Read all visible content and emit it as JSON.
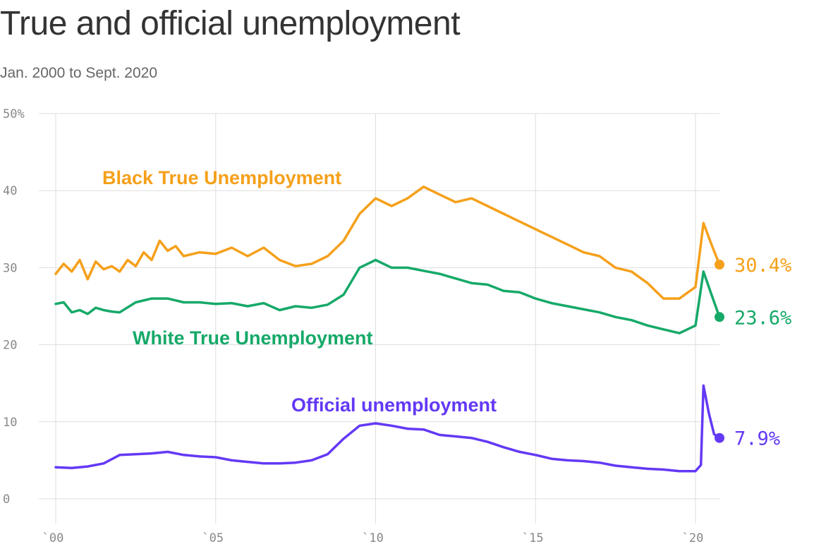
{
  "title": "True and official unemployment",
  "subtitle": "Jan. 2000 to Sept. 2020",
  "chart_data": {
    "type": "line",
    "title": "True and official unemployment",
    "subtitle": "Jan. 2000 to Sept. 2020",
    "xlabel": "",
    "ylabel": "",
    "xlim": [
      2000,
      2020.75
    ],
    "ylim": [
      0,
      50
    ],
    "grid": true,
    "legend": "inline labels",
    "x_ticks": [
      {
        "value": 2000,
        "label": "`00"
      },
      {
        "value": 2005,
        "label": "`05"
      },
      {
        "value": 2010,
        "label": "`10"
      },
      {
        "value": 2015,
        "label": "`15"
      },
      {
        "value": 2020,
        "label": "`20"
      }
    ],
    "y_ticks": [
      {
        "value": 0,
        "label": "0"
      },
      {
        "value": 10,
        "label": "10"
      },
      {
        "value": 20,
        "label": "20"
      },
      {
        "value": 30,
        "label": "30"
      },
      {
        "value": 40,
        "label": "40"
      },
      {
        "value": 50,
        "label": "50%"
      }
    ],
    "series": [
      {
        "name": "Black True Unemployment",
        "color": "#F5A01A",
        "end_label": "30.4%",
        "points": [
          [
            2000,
            29.2
          ],
          [
            2000.25,
            30.5
          ],
          [
            2000.5,
            29.5
          ],
          [
            2000.75,
            31
          ],
          [
            2001,
            28.5
          ],
          [
            2001.25,
            30.8
          ],
          [
            2001.5,
            29.8
          ],
          [
            2001.75,
            30.2
          ],
          [
            2002,
            29.5
          ],
          [
            2002.25,
            31
          ],
          [
            2002.5,
            30.2
          ],
          [
            2002.75,
            32
          ],
          [
            2003,
            31
          ],
          [
            2003.25,
            33.5
          ],
          [
            2003.5,
            32.2
          ],
          [
            2003.75,
            32.8
          ],
          [
            2004,
            31.5
          ],
          [
            2004.5,
            32
          ],
          [
            2005,
            31.8
          ],
          [
            2005.5,
            32.6
          ],
          [
            2006,
            31.5
          ],
          [
            2006.5,
            32.6
          ],
          [
            2007,
            31
          ],
          [
            2007.5,
            30.2
          ],
          [
            2008,
            30.5
          ],
          [
            2008.5,
            31.5
          ],
          [
            2009,
            33.5
          ],
          [
            2009.5,
            37
          ],
          [
            2010,
            39
          ],
          [
            2010.5,
            38
          ],
          [
            2011,
            39
          ],
          [
            2011.5,
            40.5
          ],
          [
            2012,
            39.5
          ],
          [
            2012.5,
            38.5
          ],
          [
            2013,
            39
          ],
          [
            2013.5,
            38
          ],
          [
            2014,
            37
          ],
          [
            2014.5,
            36
          ],
          [
            2015,
            35
          ],
          [
            2015.5,
            34
          ],
          [
            2016,
            33
          ],
          [
            2016.5,
            32
          ],
          [
            2017,
            31.5
          ],
          [
            2017.5,
            30
          ],
          [
            2018,
            29.5
          ],
          [
            2018.5,
            28
          ],
          [
            2019,
            26
          ],
          [
            2019.5,
            26
          ],
          [
            2020,
            27.5
          ],
          [
            2020.25,
            35.8
          ],
          [
            2020.5,
            33
          ],
          [
            2020.75,
            30.4
          ]
        ]
      },
      {
        "name": "White True Unemployment",
        "color": "#16A968",
        "end_label": "23.6%",
        "points": [
          [
            2000,
            25.3
          ],
          [
            2000.25,
            25.5
          ],
          [
            2000.5,
            24.2
          ],
          [
            2000.75,
            24.5
          ],
          [
            2001,
            24
          ],
          [
            2001.25,
            24.8
          ],
          [
            2001.5,
            24.5
          ],
          [
            2001.75,
            24.3
          ],
          [
            2002,
            24.2
          ],
          [
            2002.5,
            25.5
          ],
          [
            2003,
            26
          ],
          [
            2003.5,
            26
          ],
          [
            2004,
            25.5
          ],
          [
            2004.5,
            25.5
          ],
          [
            2005,
            25.3
          ],
          [
            2005.5,
            25.4
          ],
          [
            2006,
            25
          ],
          [
            2006.5,
            25.4
          ],
          [
            2007,
            24.5
          ],
          [
            2007.5,
            25
          ],
          [
            2008,
            24.8
          ],
          [
            2008.5,
            25.2
          ],
          [
            2009,
            26.5
          ],
          [
            2009.5,
            30
          ],
          [
            2010,
            31
          ],
          [
            2010.5,
            30
          ],
          [
            2011,
            30
          ],
          [
            2011.5,
            29.6
          ],
          [
            2012,
            29.2
          ],
          [
            2012.5,
            28.6
          ],
          [
            2013,
            28
          ],
          [
            2013.5,
            27.8
          ],
          [
            2014,
            27
          ],
          [
            2014.5,
            26.8
          ],
          [
            2015,
            26
          ],
          [
            2015.5,
            25.4
          ],
          [
            2016,
            25
          ],
          [
            2016.5,
            24.6
          ],
          [
            2017,
            24.2
          ],
          [
            2017.5,
            23.6
          ],
          [
            2018,
            23.2
          ],
          [
            2018.5,
            22.5
          ],
          [
            2019,
            22
          ],
          [
            2019.5,
            21.5
          ],
          [
            2020,
            22.5
          ],
          [
            2020.25,
            29.5
          ],
          [
            2020.5,
            26.5
          ],
          [
            2020.75,
            23.6
          ]
        ]
      },
      {
        "name": "Official unemployment",
        "color": "#6339F5",
        "end_label": "7.9%",
        "points": [
          [
            2000,
            4.1
          ],
          [
            2000.5,
            4
          ],
          [
            2001,
            4.2
          ],
          [
            2001.5,
            4.6
          ],
          [
            2002,
            5.7
          ],
          [
            2002.5,
            5.8
          ],
          [
            2003,
            5.9
          ],
          [
            2003.5,
            6.1
          ],
          [
            2004,
            5.7
          ],
          [
            2004.5,
            5.5
          ],
          [
            2005,
            5.4
          ],
          [
            2005.5,
            5
          ],
          [
            2006,
            4.8
          ],
          [
            2006.5,
            4.6
          ],
          [
            2007,
            4.6
          ],
          [
            2007.5,
            4.7
          ],
          [
            2008,
            5
          ],
          [
            2008.5,
            5.8
          ],
          [
            2009,
            7.8
          ],
          [
            2009.5,
            9.5
          ],
          [
            2010,
            9.8
          ],
          [
            2010.5,
            9.5
          ],
          [
            2011,
            9.1
          ],
          [
            2011.5,
            9
          ],
          [
            2012,
            8.3
          ],
          [
            2012.5,
            8.1
          ],
          [
            2013,
            7.9
          ],
          [
            2013.5,
            7.4
          ],
          [
            2014,
            6.7
          ],
          [
            2014.5,
            6.1
          ],
          [
            2015,
            5.7
          ],
          [
            2015.5,
            5.2
          ],
          [
            2016,
            5
          ],
          [
            2016.5,
            4.9
          ],
          [
            2017,
            4.7
          ],
          [
            2017.5,
            4.3
          ],
          [
            2018,
            4.1
          ],
          [
            2018.5,
            3.9
          ],
          [
            2019,
            3.8
          ],
          [
            2019.5,
            3.6
          ],
          [
            2020,
            3.6
          ],
          [
            2020.17,
            4.4
          ],
          [
            2020.25,
            14.7
          ],
          [
            2020.42,
            11.1
          ],
          [
            2020.58,
            8.4
          ],
          [
            2020.75,
            7.9
          ]
        ]
      }
    ]
  }
}
